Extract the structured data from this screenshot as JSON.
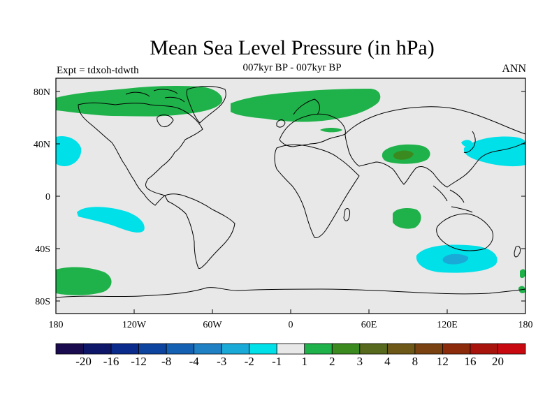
{
  "header": {
    "title": "Mean Sea Level Pressure (in hPa)",
    "subtitle": "007kyr BP - 007kyr BP",
    "experiment": "Expt = tdxoh-tdwth",
    "season": "ANN"
  },
  "axes": {
    "lat_labels": [
      "80N",
      "40N",
      "0",
      "40S",
      "80S"
    ],
    "lon_labels": [
      "180",
      "120W",
      "60W",
      "0",
      "60E",
      "120E",
      "180"
    ]
  },
  "colorbar": {
    "colors": [
      "#1a0a4e",
      "#0d1669",
      "#0a2a8c",
      "#0d44a0",
      "#1461b4",
      "#1f80c4",
      "#1aaad8",
      "#00e0e8",
      "#e8e8e8",
      "#1fb24a",
      "#3a8a1f",
      "#56691c",
      "#6e5818",
      "#7a4210",
      "#8c2a0c",
      "#a8140c",
      "#c80a10"
    ],
    "labels": [
      "-20",
      "-16",
      "-12",
      "-8",
      "-4",
      "-3",
      "-2",
      "-1",
      "1",
      "2",
      "3",
      "4",
      "8",
      "12",
      "16",
      "20"
    ]
  },
  "colors": {
    "ocean_bg": "#e8e8e8",
    "positive_1_2": "#1fb24a",
    "positive_2_3": "#3a8a1f",
    "negative_1_2": "#00e0e8",
    "negative_2_3": "#1aaad8"
  }
}
